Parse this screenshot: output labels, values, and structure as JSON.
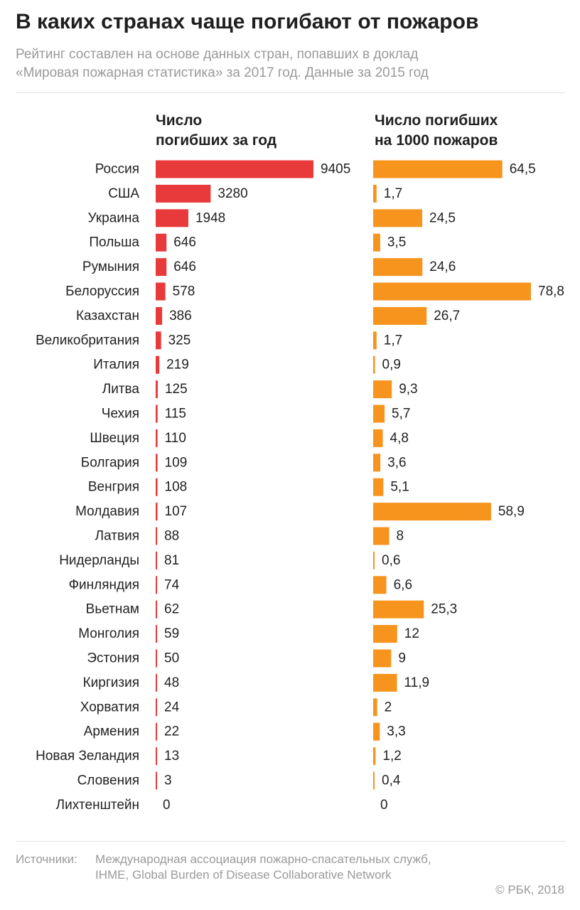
{
  "header": {
    "title": "В каких странах чаще погибают от пожаров",
    "subtitle_line1": "Рейтинг составлен на основе данных стран, попавших в доклад",
    "subtitle_line2": "«Мировая пожарная статистика» за 2017 год. Данные за 2015 год"
  },
  "columns": {
    "left_head_line1": "Число",
    "left_head_line2": "погибших за год",
    "right_head_line1": "Число погибших",
    "right_head_line2": "на 1000 пожаров"
  },
  "footer": {
    "sources_label": "Источники:",
    "sources_text": "Международная ассоциация пожарно-спасательных служб, IHME, Global Burden of Disease Collaborative Network",
    "credit": "© РБК, 2018"
  },
  "colors": {
    "deaths_bar": "#e83a3a",
    "rate_bar": "#f7941d"
  },
  "chart_data": [
    {
      "type": "bar",
      "orientation": "horizontal",
      "title": "Число погибших за год",
      "categories": [
        "Россия",
        "США",
        "Украина",
        "Польша",
        "Румыния",
        "Белоруссия",
        "Казахстан",
        "Великобритания",
        "Италия",
        "Литва",
        "Чехия",
        "Швеция",
        "Болгария",
        "Венгрия",
        "Молдавия",
        "Латвия",
        "Нидерланды",
        "Финляндия",
        "Вьетнам",
        "Монголия",
        "Эстония",
        "Киргизия",
        "Хорватия",
        "Армения",
        "Новая Зеландия",
        "Словения",
        "Лихтенштейн"
      ],
      "values": [
        9405,
        3280,
        1948,
        646,
        646,
        578,
        386,
        325,
        219,
        125,
        115,
        110,
        109,
        108,
        107,
        88,
        81,
        74,
        62,
        59,
        50,
        48,
        24,
        22,
        13,
        3,
        0
      ],
      "labels": [
        "9405",
        "3280",
        "1948",
        "646",
        "646",
        "578",
        "386",
        "325",
        "219",
        "125",
        "115",
        "110",
        "109",
        "108",
        "107",
        "88",
        "81",
        "74",
        "62",
        "59",
        "50",
        "48",
        "24",
        "22",
        "13",
        "3",
        "0"
      ],
      "color": "#e83a3a",
      "xlim": [
        0,
        9405
      ],
      "grid": false
    },
    {
      "type": "bar",
      "orientation": "horizontal",
      "title": "Число погибших на 1000 пожаров",
      "categories": [
        "Россия",
        "США",
        "Украина",
        "Польша",
        "Румыния",
        "Белоруссия",
        "Казахстан",
        "Великобритания",
        "Италия",
        "Литва",
        "Чехия",
        "Швеция",
        "Болгария",
        "Венгрия",
        "Молдавия",
        "Латвия",
        "Нидерланды",
        "Финляндия",
        "Вьетнам",
        "Монголия",
        "Эстония",
        "Киргизия",
        "Хорватия",
        "Армения",
        "Новая Зеландия",
        "Словения",
        "Лихтенштейн"
      ],
      "values": [
        64.5,
        1.7,
        24.5,
        3.5,
        24.6,
        78.8,
        26.7,
        1.7,
        0.9,
        9.3,
        5.7,
        4.8,
        3.6,
        5.1,
        58.9,
        8,
        0.6,
        6.6,
        25.3,
        12,
        9,
        11.9,
        2,
        3.3,
        1.2,
        0.4,
        0
      ],
      "labels": [
        "64,5",
        "1,7",
        "24,5",
        "3,5",
        "24,6",
        "78,8",
        "26,7",
        "1,7",
        "0,9",
        "9,3",
        "5,7",
        "4,8",
        "3,6",
        "5,1",
        "58,9",
        "8",
        "0,6",
        "6,6",
        "25,3",
        "12",
        "9",
        "11,9",
        "2",
        "3,3",
        "1,2",
        "0,4",
        "0"
      ],
      "color": "#f7941d",
      "xlim": [
        0,
        78.8
      ],
      "grid": false
    }
  ]
}
